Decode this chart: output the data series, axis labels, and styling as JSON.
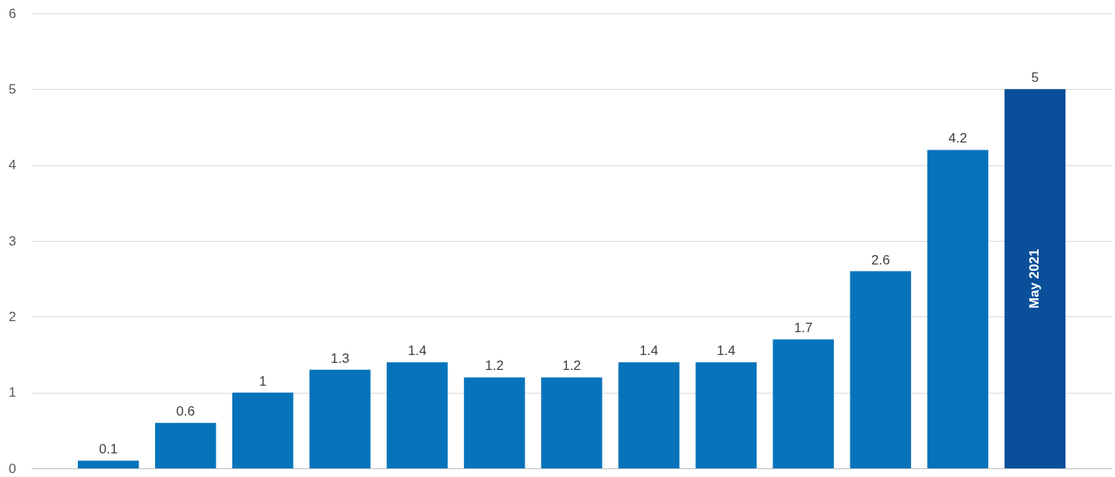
{
  "chart_data": {
    "type": "bar",
    "categories": [
      null,
      null,
      null,
      null,
      null,
      null,
      null,
      null,
      null,
      null,
      null,
      null,
      "May 2021"
    ],
    "values": [
      0.1,
      0.6,
      1,
      1.3,
      1.4,
      1.2,
      1.2,
      1.4,
      1.4,
      1.7,
      2.6,
      4.2,
      5
    ],
    "colors": [
      "#0773bb",
      "#0773bb",
      "#0773bb",
      "#0773bb",
      "#0773bb",
      "#0773bb",
      "#0773bb",
      "#0773bb",
      "#0773bb",
      "#0773bb",
      "#0773bb",
      "#0773bb",
      "#0a4f9a"
    ],
    "ylim": [
      0,
      6
    ],
    "yticks": [
      0,
      1,
      2,
      3,
      4,
      5,
      6
    ],
    "grid": "y",
    "data_labels": true
  }
}
